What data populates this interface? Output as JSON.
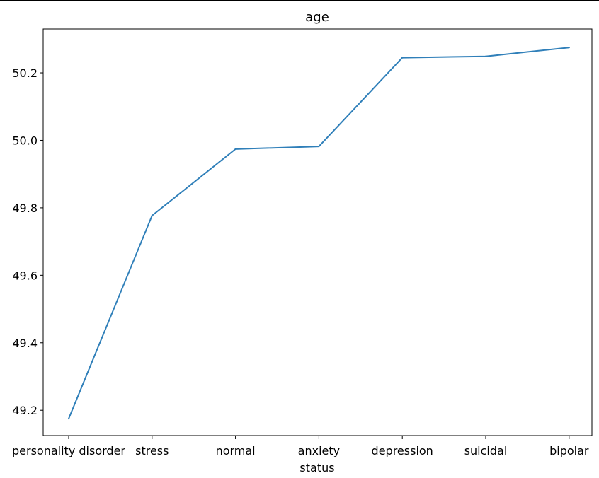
{
  "chart_data": {
    "type": "line",
    "title": "age",
    "xlabel": "status",
    "ylabel": "",
    "categories": [
      "personality disorder",
      "stress",
      "normal",
      "anxiety",
      "depression",
      "suicidal",
      "bipolar"
    ],
    "series": [
      {
        "values": [
          49.175,
          49.777,
          49.974,
          49.982,
          50.245,
          50.249,
          50.275
        ],
        "color": "#2f7fb9"
      }
    ],
    "ylim": [
      49.125,
      50.33
    ],
    "yticks": [
      49.2,
      49.4,
      49.6,
      49.8,
      50.0,
      50.2
    ],
    "ytick_labels": [
      "49.2",
      "49.4",
      "49.6",
      "49.8",
      "50.0",
      "50.2"
    ],
    "grid": false,
    "legend": "none"
  }
}
